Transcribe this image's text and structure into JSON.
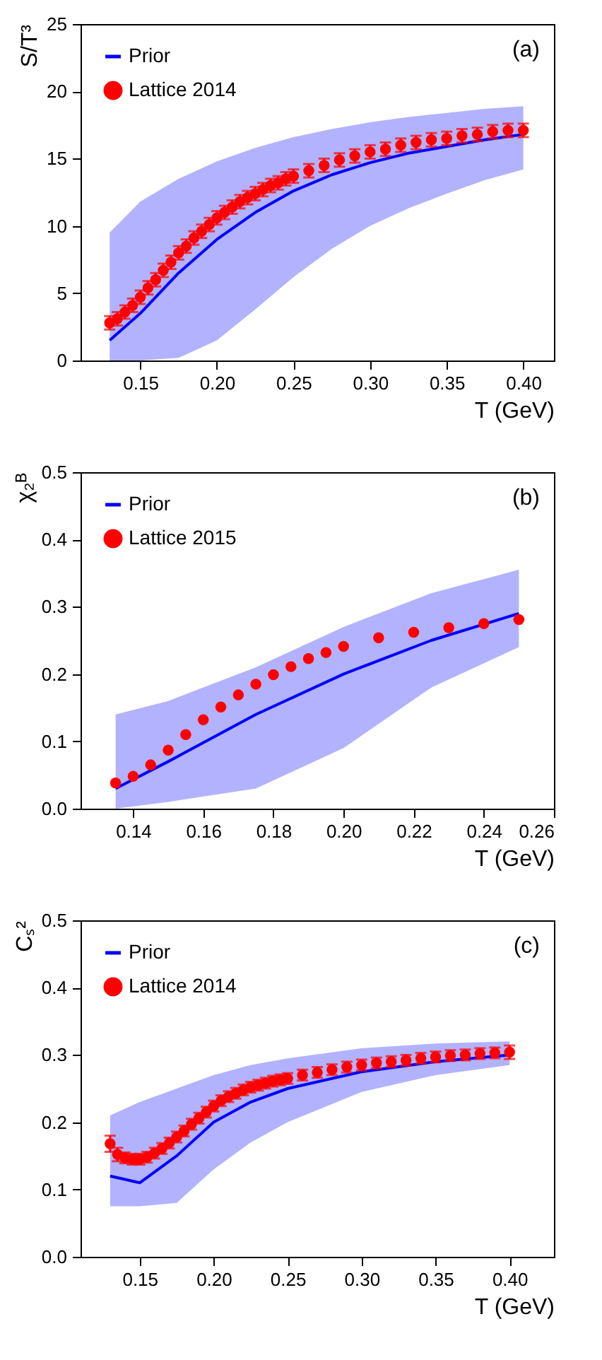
{
  "chart_data": [
    {
      "type": "line",
      "xlabel": "T (GeV)",
      "ylabel": "S/T³",
      "annotations": [
        "(a)"
      ],
      "legend": "top left",
      "grid": false,
      "xlim": [
        0.111,
        0.42
      ],
      "xticks": [
        0.15,
        {
          "value": 0.2,
          "label": "0.20"
        },
        0.25,
        {
          "value": 0.3,
          "label": "0.30"
        },
        0.35,
        {
          "value": 0.4,
          "label": "0.40"
        }
      ],
      "ylim": [
        0,
        25
      ],
      "yticks": [
        0,
        5,
        10,
        15,
        20,
        25
      ],
      "series": [
        {
          "name": "Prior",
          "type": "line",
          "marker": "none",
          "color": "#0000ff",
          "x": [
            0.13,
            0.15,
            0.175,
            0.2,
            0.225,
            0.25,
            0.275,
            0.3,
            0.325,
            0.35,
            0.375,
            0.4
          ],
          "values": [
            1.5,
            3.5,
            6.5,
            9,
            11,
            12.6,
            13.8,
            14.7,
            15.4,
            15.9,
            16.4,
            16.8
          ],
          "lower": [
            0,
            0,
            0.2,
            1.5,
            3.8,
            6.2,
            8.3,
            10,
            11.3,
            12.4,
            13.4,
            14.2
          ],
          "upper": [
            9.5,
            11.8,
            13.5,
            14.8,
            15.8,
            16.6,
            17.2,
            17.7,
            18.1,
            18.4,
            18.7,
            18.9
          ]
        },
        {
          "name": "Lattice 2014",
          "type": "scatter",
          "marker": "circle",
          "color": "#ff0000",
          "x": [
            0.13,
            0.135,
            0.14,
            0.145,
            0.15,
            0.155,
            0.16,
            0.165,
            0.17,
            0.175,
            0.18,
            0.185,
            0.19,
            0.195,
            0.2,
            0.205,
            0.21,
            0.215,
            0.22,
            0.225,
            0.23,
            0.235,
            0.24,
            0.245,
            0.25,
            0.26,
            0.27,
            0.28,
            0.29,
            0.3,
            0.31,
            0.32,
            0.33,
            0.34,
            0.35,
            0.36,
            0.37,
            0.38,
            0.39,
            0.4
          ],
          "values": [
            2.8,
            3.1,
            3.6,
            4.1,
            4.7,
            5.4,
            6.0,
            6.7,
            7.3,
            8.0,
            8.5,
            9.1,
            9.6,
            10.1,
            10.6,
            11.0,
            11.4,
            11.8,
            12.1,
            12.4,
            12.7,
            13.0,
            13.2,
            13.5,
            13.7,
            14.1,
            14.5,
            14.9,
            15.2,
            15.5,
            15.7,
            16.0,
            16.2,
            16.4,
            16.5,
            16.7,
            16.8,
            17.0,
            17.1,
            17.1
          ],
          "errors": [
            0.5,
            0.5,
            0.5,
            0.5,
            0.5,
            0.5,
            0.5,
            0.5,
            0.5,
            0.5,
            0.5,
            0.5,
            0.5,
            0.5,
            0.5,
            0.5,
            0.5,
            0.5,
            0.5,
            0.5,
            0.5,
            0.5,
            0.5,
            0.5,
            0.5,
            0.5,
            0.5,
            0.5,
            0.5,
            0.5,
            0.5,
            0.5,
            0.5,
            0.5,
            0.5,
            0.5,
            0.5,
            0.5,
            0.5,
            0.5
          ]
        }
      ]
    },
    {
      "type": "line",
      "xlabel": "T (GeV)",
      "ylabel": "χ₂ᴮ",
      "annotations": [
        "(b)"
      ],
      "legend": "top left",
      "grid": false,
      "xlim": [
        0.125,
        0.26
      ],
      "xticks": [
        0.14,
        0.16,
        0.18,
        {
          "value": 0.2,
          "label": "0.20"
        },
        0.22,
        0.24,
        0.26
      ],
      "ylim": [
        0,
        0.5
      ],
      "yticks": [
        {
          "value": 0,
          "label": "0.0"
        },
        0.1,
        0.2,
        0.3,
        0.4,
        0.5
      ],
      "series": [
        {
          "name": "Prior",
          "type": "line",
          "marker": "none",
          "color": "#0000ff",
          "x": [
            0.135,
            0.15,
            0.175,
            0.2,
            0.225,
            0.25
          ],
          "values": [
            0.03,
            0.07,
            0.14,
            0.2,
            0.25,
            0.29
          ],
          "lower": [
            0,
            0.01,
            0.03,
            0.09,
            0.18,
            0.24
          ],
          "upper": [
            0.14,
            0.16,
            0.21,
            0.27,
            0.32,
            0.355
          ]
        },
        {
          "name": "Lattice 2015",
          "type": "scatter",
          "marker": "circle",
          "color": "#ff0000",
          "x": [
            0.135,
            0.14,
            0.145,
            0.15,
            0.155,
            0.16,
            0.165,
            0.17,
            0.175,
            0.18,
            0.185,
            0.19,
            0.195,
            0.2,
            0.21,
            0.22,
            0.23,
            0.24,
            0.25
          ],
          "values": [
            0.038,
            0.048,
            0.065,
            0.087,
            0.11,
            0.132,
            0.151,
            0.169,
            0.185,
            0.199,
            0.211,
            0.223,
            0.232,
            0.241,
            0.254,
            0.262,
            0.269,
            0.275,
            0.281
          ]
        }
      ]
    },
    {
      "type": "line",
      "xlabel": "T (GeV)",
      "ylabel": "Cₛ²",
      "annotations": [
        "(c)"
      ],
      "legend": "top left",
      "grid": false,
      "xlim": [
        0.11,
        0.43
      ],
      "xticks": [
        0.15,
        {
          "value": 0.2,
          "label": "0.20"
        },
        0.25,
        {
          "value": 0.3,
          "label": "0.30"
        },
        0.35,
        {
          "value": 0.4,
          "label": "0.40"
        }
      ],
      "ylim": [
        0,
        0.5
      ],
      "yticks": [
        {
          "value": 0,
          "label": "0.0"
        },
        0.1,
        0.2,
        0.3,
        0.4,
        0.5
      ],
      "series": [
        {
          "name": "Prior",
          "type": "line",
          "marker": "none",
          "color": "#0000ff",
          "x": [
            0.13,
            0.15,
            0.175,
            0.2,
            0.225,
            0.25,
            0.3,
            0.35,
            0.4
          ],
          "values": [
            0.12,
            0.11,
            0.15,
            0.2,
            0.23,
            0.25,
            0.275,
            0.29,
            0.3
          ],
          "lower": [
            0.075,
            0.075,
            0.08,
            0.13,
            0.17,
            0.2,
            0.245,
            0.27,
            0.285
          ],
          "upper": [
            0.21,
            0.23,
            0.25,
            0.27,
            0.285,
            0.295,
            0.31,
            0.317,
            0.32
          ]
        },
        {
          "name": "Lattice 2014",
          "type": "scatter",
          "marker": "circle",
          "color": "#ff0000",
          "x": [
            0.13,
            0.135,
            0.14,
            0.145,
            0.15,
            0.155,
            0.16,
            0.165,
            0.17,
            0.175,
            0.18,
            0.185,
            0.19,
            0.195,
            0.2,
            0.205,
            0.21,
            0.215,
            0.22,
            0.225,
            0.23,
            0.235,
            0.24,
            0.245,
            0.25,
            0.26,
            0.27,
            0.28,
            0.29,
            0.3,
            0.31,
            0.32,
            0.33,
            0.34,
            0.35,
            0.36,
            0.37,
            0.38,
            0.39,
            0.4
          ],
          "values": [
            0.168,
            0.152,
            0.147,
            0.145,
            0.145,
            0.148,
            0.154,
            0.161,
            0.169,
            0.178,
            0.187,
            0.197,
            0.206,
            0.215,
            0.224,
            0.232,
            0.238,
            0.243,
            0.248,
            0.252,
            0.255,
            0.258,
            0.261,
            0.263,
            0.265,
            0.27,
            0.274,
            0.278,
            0.282,
            0.285,
            0.288,
            0.29,
            0.292,
            0.295,
            0.297,
            0.299,
            0.3,
            0.302,
            0.303,
            0.304
          ],
          "errors": [
            0.012,
            0.01,
            0.008,
            0.008,
            0.008,
            0.008,
            0.008,
            0.008,
            0.008,
            0.008,
            0.008,
            0.008,
            0.008,
            0.008,
            0.008,
            0.008,
            0.008,
            0.008,
            0.008,
            0.008,
            0.008,
            0.008,
            0.008,
            0.008,
            0.008,
            0.008,
            0.008,
            0.008,
            0.008,
            0.008,
            0.008,
            0.008,
            0.008,
            0.008,
            0.008,
            0.008,
            0.008,
            0.008,
            0.008,
            0.01
          ]
        }
      ]
    }
  ]
}
